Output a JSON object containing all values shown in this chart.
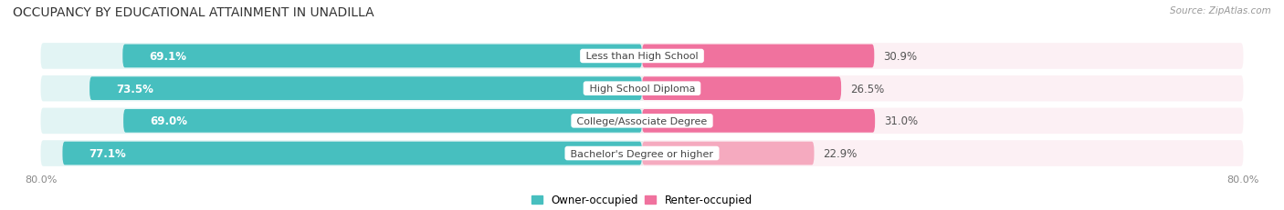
{
  "title": "OCCUPANCY BY EDUCATIONAL ATTAINMENT IN UNADILLA",
  "source": "Source: ZipAtlas.com",
  "categories": [
    "Less than High School",
    "High School Diploma",
    "College/Associate Degree",
    "Bachelor's Degree or higher"
  ],
  "owner_values": [
    69.1,
    73.5,
    69.0,
    77.1
  ],
  "renter_values": [
    30.9,
    26.5,
    31.0,
    22.9
  ],
  "owner_color": "#47BFBF",
  "renter_colors": [
    "#F0729E",
    "#F0729E",
    "#F0729E",
    "#F5AABF"
  ],
  "owner_bg_color": "#E2F4F4",
  "renter_bg_color": "#FCF0F4",
  "row_bg_color": "#F2F2F2",
  "background_color": "#FFFFFF",
  "x_left_label": "80.0%",
  "x_right_label": "80.0%",
  "total_width": 100,
  "title_fontsize": 10,
  "bar_label_fontsize": 8.5,
  "category_fontsize": 8.0,
  "legend_fontsize": 8.5,
  "axis_label_fontsize": 8
}
